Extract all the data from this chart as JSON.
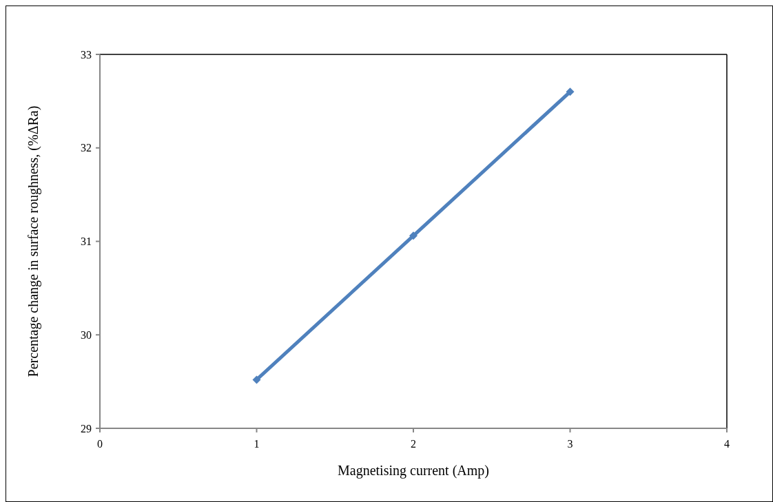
{
  "chart_data": {
    "type": "line",
    "xlabel": "Magnetising current (Amp)",
    "ylabel": "Percentage change in surface roughness, (%ΔRa)",
    "x": [
      1,
      2,
      3
    ],
    "series": [
      {
        "color": "#4f81bd",
        "values": [
          29.52,
          31.06,
          32.6
        ]
      }
    ],
    "xlim": [
      0,
      4
    ],
    "xticks": [
      0,
      1,
      2,
      3,
      4
    ],
    "ylim": [
      29,
      33
    ],
    "yticks": [
      29,
      30,
      31,
      32,
      33
    ],
    "grid": false,
    "marker": "diamond",
    "line_style": "solid"
  }
}
